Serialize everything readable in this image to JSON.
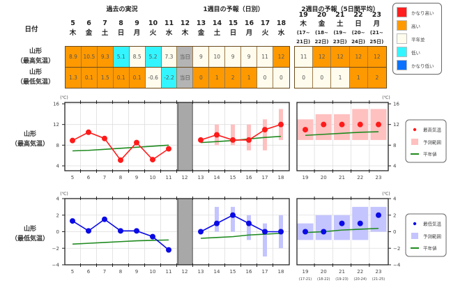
{
  "header": {
    "past_label": "過去の実況",
    "week1_label": "1週目の予報（日別）",
    "week2_label": "2週目の予報（5日間平均）",
    "date_label": "日付"
  },
  "days_week1": [
    {
      "d": "5",
      "w": "木"
    },
    {
      "d": "6",
      "w": "金"
    },
    {
      "d": "7",
      "w": "土"
    },
    {
      "d": "8",
      "w": "日"
    },
    {
      "d": "9",
      "w": "月"
    },
    {
      "d": "10",
      "w": "火"
    },
    {
      "d": "11",
      "w": "水"
    },
    {
      "d": "12",
      "w": "木"
    },
    {
      "d": "13",
      "w": "金"
    },
    {
      "d": "14",
      "w": "土"
    },
    {
      "d": "15",
      "w": "日"
    },
    {
      "d": "16",
      "w": "月"
    },
    {
      "d": "17",
      "w": "火"
    },
    {
      "d": "18",
      "w": "水"
    }
  ],
  "days_week2": [
    {
      "d": "19",
      "w": "木",
      "p1": "(17~",
      "p2": "21日)"
    },
    {
      "d": "20",
      "w": "金",
      "p1": "(18~",
      "p2": "22日)"
    },
    {
      "d": "21",
      "w": "土",
      "p1": "(19~",
      "p2": "23日)"
    },
    {
      "d": "22",
      "w": "日",
      "p1": "(20~",
      "p2": "24日)"
    },
    {
      "d": "23",
      "w": "月",
      "p1": "(21~",
      "p2": "25日)"
    }
  ],
  "rows": [
    {
      "label1": "山形",
      "label2": "（最高気温）",
      "cells": [
        {
          "v": "8.9",
          "c": "high"
        },
        {
          "v": "10.5",
          "c": "high"
        },
        {
          "v": "9.3",
          "c": "high"
        },
        {
          "v": "5.1",
          "c": "low"
        },
        {
          "v": "8.5",
          "c": "normal"
        },
        {
          "v": "5.2",
          "c": "low"
        },
        {
          "v": "7.3",
          "c": "normal"
        },
        {
          "v": "当日",
          "c": "today"
        },
        {
          "v": "9",
          "c": "normal"
        },
        {
          "v": "10",
          "c": "normal"
        },
        {
          "v": "9",
          "c": "normal"
        },
        {
          "v": "9",
          "c": "normal"
        },
        {
          "v": "11",
          "c": "normal"
        },
        {
          "v": "12",
          "c": "high"
        }
      ],
      "cells2": [
        {
          "v": "11",
          "c": "normal"
        },
        {
          "v": "12",
          "c": "high"
        },
        {
          "v": "12",
          "c": "high"
        },
        {
          "v": "12",
          "c": "high"
        },
        {
          "v": "12",
          "c": "high"
        }
      ]
    },
    {
      "label1": "山形",
      "label2": "（最低気温）",
      "cells": [
        {
          "v": "1.3",
          "c": "high"
        },
        {
          "v": "0.1",
          "c": "high"
        },
        {
          "v": "1.5",
          "c": "high"
        },
        {
          "v": "0.1",
          "c": "high"
        },
        {
          "v": "0.1",
          "c": "high"
        },
        {
          "v": "-0.6",
          "c": "normal"
        },
        {
          "v": "-2.2",
          "c": "low"
        },
        {
          "v": "当日",
          "c": "today"
        },
        {
          "v": "0",
          "c": "high"
        },
        {
          "v": "1",
          "c": "high"
        },
        {
          "v": "2",
          "c": "high"
        },
        {
          "v": "1",
          "c": "high"
        },
        {
          "v": "0",
          "c": "normal"
        },
        {
          "v": "0",
          "c": "normal"
        }
      ],
      "cells2": [
        {
          "v": "0",
          "c": "normal"
        },
        {
          "v": "0",
          "c": "normal"
        },
        {
          "v": "1",
          "c": "normal"
        },
        {
          "v": "1",
          "c": "high"
        },
        {
          "v": "2",
          "c": "high"
        }
      ]
    }
  ],
  "colors": {
    "very_high": "#ff1f1f",
    "high": "#ff9900",
    "normal": "#fffcee",
    "low": "#33f5ff",
    "very_low": "#0a72ff",
    "today": "#b4b4b4"
  },
  "class_legend": [
    {
      "key": "very_high",
      "label": "かなり高い"
    },
    {
      "key": "high",
      "label": "高い"
    },
    {
      "key": "normal",
      "label": "平年並"
    },
    {
      "key": "low",
      "label": "低い"
    },
    {
      "key": "very_low",
      "label": "かなり低い"
    }
  ],
  "chart_data": [
    {
      "type": "line",
      "label1": "山形",
      "label2": "（最高気温）",
      "unit": "(℃)",
      "ylim": [
        4,
        16
      ],
      "yticks": [
        "16",
        "12",
        "8",
        "4"
      ],
      "ytick_values": [
        16,
        12,
        8,
        4
      ],
      "x_week1": [
        "5",
        "6",
        "7",
        "8",
        "9",
        "10",
        "11",
        "12",
        "13",
        "14",
        "15",
        "16",
        "17",
        "18"
      ],
      "x_week2": [
        "19",
        "20",
        "21",
        "22",
        "23"
      ],
      "x_week2_sub": [],
      "observed": [
        8.9,
        10.5,
        9.3,
        5.1,
        8.5,
        5.2,
        7.3
      ],
      "forecast": [
        9,
        10,
        9,
        9,
        11,
        12
      ],
      "forecast_range": [
        null,
        [
          8,
          12
        ],
        [
          8,
          12
        ],
        [
          7,
          12
        ],
        [
          7,
          13
        ],
        [
          9,
          15
        ]
      ],
      "normal_past": [
        6.9,
        7.0,
        7.2,
        7.4,
        7.6,
        7.8,
        8.0
      ],
      "normal_fc": [
        8.5,
        8.7,
        8.9,
        9.2,
        9.5,
        9.7
      ],
      "week2": [
        11,
        12,
        12,
        12,
        12
      ],
      "week2_range": [
        [
          9,
          13
        ],
        [
          9,
          14
        ],
        [
          9,
          14
        ],
        [
          9,
          15
        ],
        [
          9,
          15
        ]
      ],
      "week2_normal": [
        9.9,
        10.1,
        10.3,
        10.5,
        10.6
      ],
      "series_color": "#ff1a1a",
      "range_color": "#ffc0c0",
      "normal_color": "#1e8a1e",
      "legend": [
        "最高気温",
        "予測範囲",
        "平年値"
      ],
      "grid": true
    },
    {
      "type": "line",
      "label1": "山形",
      "label2": "（最低気温）",
      "unit": "(℃)",
      "ylim": [
        -4,
        4
      ],
      "yticks": [
        "4",
        "2",
        "0",
        "−2",
        "−4"
      ],
      "ytick_values": [
        4,
        2,
        0,
        -2,
        -4
      ],
      "x_week1": [
        "5",
        "6",
        "7",
        "8",
        "9",
        "10",
        "11",
        "12",
        "13",
        "14",
        "15",
        "16",
        "17",
        "18"
      ],
      "x_week2": [
        "19",
        "20",
        "21",
        "22",
        "23"
      ],
      "x_week2_sub": [
        "(17-21)",
        "(18-22)",
        "(19-23)",
        "(20-24)",
        "(21-25)"
      ],
      "observed": [
        1.3,
        0.1,
        1.5,
        0.1,
        0.1,
        -0.6,
        -2.2
      ],
      "forecast": [
        0,
        1,
        2,
        1,
        0,
        0
      ],
      "forecast_range": [
        null,
        [
          0,
          3
        ],
        [
          0,
          3
        ],
        [
          -1,
          2
        ],
        [
          -3,
          1
        ],
        [
          -2,
          2
        ]
      ],
      "normal_past": [
        -1.5,
        -1.4,
        -1.3,
        -1.2,
        -1.1,
        -1.05,
        -1.0
      ],
      "normal_fc": [
        -0.8,
        -0.7,
        -0.6,
        -0.4,
        -0.3,
        -0.2
      ],
      "week2": [
        0,
        0,
        1,
        1,
        2
      ],
      "week2_range": [
        [
          -1,
          1
        ],
        [
          -1,
          2
        ],
        [
          -1,
          2
        ],
        [
          -1,
          3
        ],
        [
          0,
          3
        ]
      ],
      "week2_normal": [
        -0.1,
        0.0,
        0.2,
        0.3,
        0.4
      ],
      "series_color": "#0a0ae6",
      "range_color": "#c4c4ff",
      "normal_color": "#1e8a1e",
      "legend": [
        "最低気温",
        "予測範囲",
        "平年値"
      ],
      "grid": true
    }
  ]
}
